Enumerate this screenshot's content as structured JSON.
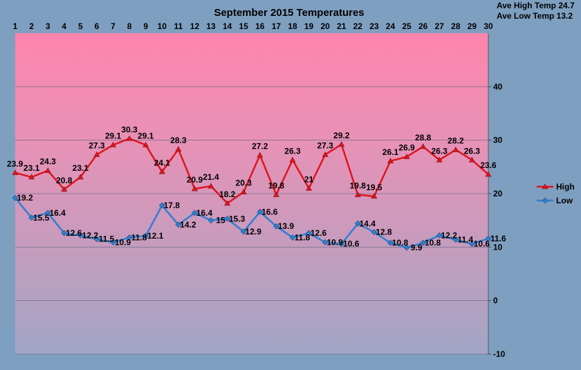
{
  "chart_data": {
    "type": "line",
    "title": "September 2015 Temperatures",
    "summary": [
      "Ave High Temp 24.7",
      "Ave Low Temp 13.2"
    ],
    "x": [
      1,
      2,
      3,
      4,
      5,
      6,
      7,
      8,
      9,
      10,
      11,
      12,
      13,
      14,
      15,
      16,
      17,
      18,
      19,
      20,
      21,
      22,
      23,
      24,
      25,
      26,
      27,
      28,
      29,
      30
    ],
    "ylim": [
      -10,
      50
    ],
    "yticks": [
      -10,
      0,
      10,
      20,
      30,
      40
    ],
    "grid": true,
    "legend_position": "right",
    "series": [
      {
        "name": "High",
        "color": "#e0141e",
        "marker": "triangle",
        "values": [
          23.9,
          23.1,
          24.3,
          20.8,
          23.1,
          27.3,
          29.1,
          30.3,
          29.1,
          24.1,
          28.3,
          20.9,
          21.4,
          18.2,
          20.3,
          27.2,
          19.8,
          26.3,
          21,
          27.3,
          29.2,
          19.8,
          19.5,
          26.1,
          26.9,
          28.8,
          26.3,
          28.2,
          26.3,
          23.6
        ]
      },
      {
        "name": "Low",
        "color": "#2e7fd0",
        "marker": "diamond",
        "values": [
          19.2,
          15.5,
          16.4,
          12.6,
          12.2,
          11.5,
          10.9,
          11.8,
          12.1,
          17.8,
          14.2,
          16.4,
          15,
          15.3,
          12.9,
          16.6,
          13.9,
          11.8,
          12.6,
          10.9,
          10.6,
          14.4,
          12.8,
          10.8,
          9.9,
          10.8,
          12.2,
          11.4,
          10.6,
          11.6
        ]
      }
    ]
  }
}
